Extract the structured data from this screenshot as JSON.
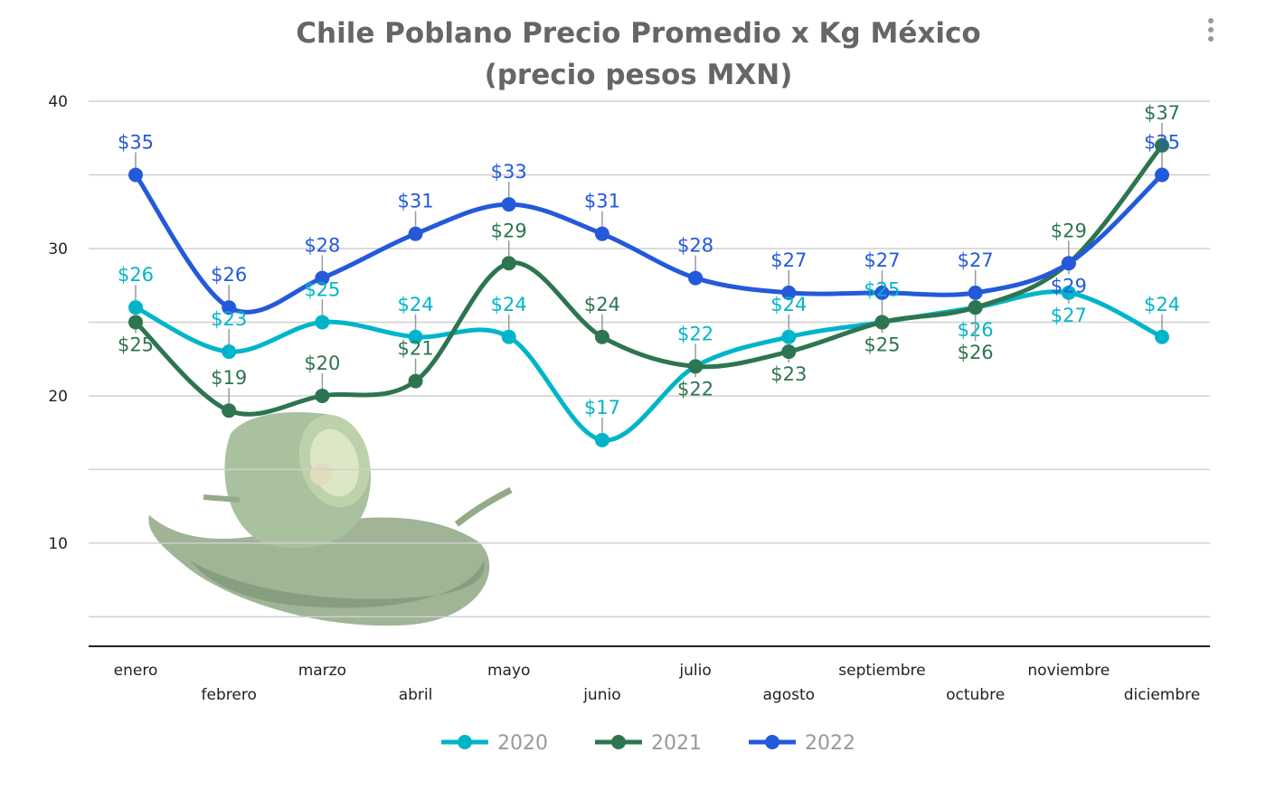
{
  "header": {
    "title_line1": "Chile Poblano Precio Promedio x Kg México",
    "title_line2": "(precio pesos MXN)"
  },
  "icons": {
    "menu": "vertical-ellipsis-icon",
    "image": "poblano-pepper-image"
  },
  "chart_data": {
    "type": "line",
    "title": "Chile Poblano Precio Promedio x Kg México (precio pesos MXN)",
    "categories": [
      "enero",
      "febrero",
      "marzo",
      "abril",
      "mayo",
      "junio",
      "julio",
      "agosto",
      "septiembre",
      "octubre",
      "noviembre",
      "diciembre"
    ],
    "series": [
      {
        "name": "2020",
        "color": "#00B5C9",
        "values": [
          26,
          23,
          25,
          24,
          24,
          17,
          22,
          24,
          25,
          26,
          27,
          24
        ]
      },
      {
        "name": "2021",
        "color": "#2D7550",
        "values": [
          25,
          19,
          20,
          21,
          29,
          24,
          22,
          23,
          25,
          26,
          29,
          37
        ]
      },
      {
        "name": "2022",
        "color": "#2459DB",
        "values": [
          35,
          26,
          28,
          31,
          33,
          31,
          28,
          27,
          27,
          27,
          29,
          35
        ]
      }
    ],
    "label_prefix": "$",
    "ylim": [
      3,
      40
    ],
    "yticks": [
      10,
      20,
      30,
      40
    ],
    "grid": true,
    "smooth": true,
    "legend": "bottom"
  }
}
